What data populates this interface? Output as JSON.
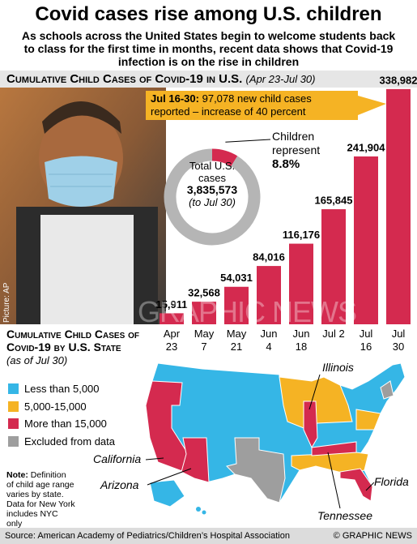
{
  "title": "Covid cases rise among U.S. children",
  "subtitle": "As schools across the United States begin to welcome students back to class for the first time in months, recent data shows that Covid-19 infection is on the rise in children",
  "chart_data": [
    {
      "type": "bar",
      "title": "Cumulative Child Cases of Covid-19 in U.S.",
      "subtitle": "(Apr 23-Jul 30)",
      "categories": [
        "Apr 23",
        "May 7",
        "May 21",
        "Jun 4",
        "Jun 18",
        "Jul 2",
        "Jul 16",
        "Jul 30"
      ],
      "values": [
        15911,
        32568,
        54031,
        84016,
        116176,
        165845,
        241904,
        338982
      ],
      "value_labels": [
        "15,911",
        "32,568",
        "54,031",
        "84,016",
        "116,176",
        "165,845",
        "241,904",
        "338,982"
      ],
      "color": "#d42a4f",
      "ylim": [
        0,
        340000
      ],
      "annotation": {
        "lead": "Jul 16-30:",
        "text": "97,078 new child cases reported – increase of 40 percent"
      }
    },
    {
      "type": "pie",
      "categories": [
        "Children represent",
        null
      ],
      "values": [
        8.8,
        91.2
      ],
      "value_labels": [
        "8.8%",
        null
      ],
      "colors": [
        "#d42a4f",
        "#b5b5b5"
      ],
      "center": {
        "label": "Total U.S. cases",
        "value": "3,835,573",
        "note": "(to Jul 30)"
      }
    }
  ],
  "photo_credit": "Picture: AP",
  "watermark": "GRAPHIC NEWS",
  "map": {
    "title": "Cumulative Child Cases of Covid-19 by U.S. State",
    "subtitle": "(as of Jul 30)",
    "legend": [
      {
        "label": "Less than 5,000",
        "color": "#35b6e6"
      },
      {
        "label": "5,000-15,000",
        "color": "#f5b324"
      },
      {
        "label": "More than 15,000",
        "color": "#d42a4f"
      },
      {
        "label": "Excluded from data",
        "color": "#9e9e9e"
      }
    ],
    "states": [
      "Illinois",
      "California",
      "Arizona",
      "Tennessee",
      "Florida"
    ],
    "note": {
      "lead": "Note:",
      "text": "Definition of child age range varies by state. Data for New York includes NYC only"
    }
  },
  "footer": {
    "source": "Source: American Academy of Pediatrics/Children’s Hospital Association",
    "credit": "© GRAPHIC NEWS"
  }
}
